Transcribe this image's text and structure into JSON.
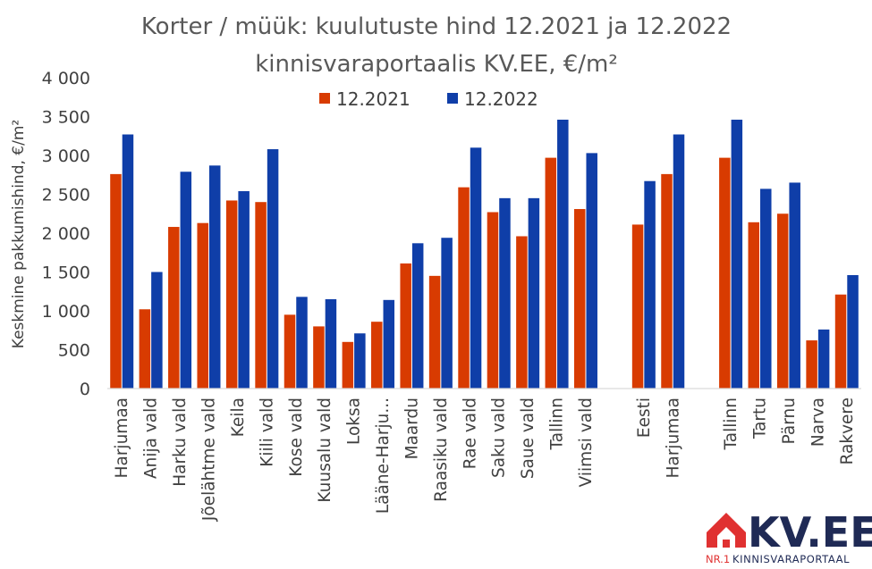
{
  "chart_data": {
    "type": "bar",
    "title": [
      "Korter / müük: kuulutuste hind 12.2021 ja 12.2022",
      "kinnisvaraportaalis KV.EE, €/m²"
    ],
    "ylabel": "Keskmine pakkumishind, €/m²",
    "xlabel": "",
    "ylim": [
      0,
      4000
    ],
    "yticks": [
      0,
      500,
      1000,
      1500,
      2000,
      2500,
      3000,
      3500,
      4000
    ],
    "ytick_labels": [
      "0",
      "500",
      "1 000",
      "1 500",
      "2 000",
      "2 500",
      "3 000",
      "3 500",
      "4 000"
    ],
    "grid": false,
    "legend_position": "top-center",
    "categories": [
      "Harjumaa",
      "Anija vald",
      "Harku vald",
      "Jõelähtme vald",
      "Keila",
      "Kiili vald",
      "Kose vald",
      "Kuusalu vald",
      "Loksa",
      "Lääne-Harju...",
      "Maardu",
      "Raasiku vald",
      "Rae vald",
      "Saku vald",
      "Saue vald",
      "Tallinn",
      "Viimsi vald",
      "",
      "Eesti",
      "Harjumaa",
      "",
      "Tallinn",
      "Tartu",
      "Pärnu",
      "Narva",
      "Rakvere"
    ],
    "series": [
      {
        "name": "12.2021",
        "color": "#d83b01",
        "values": [
          2760,
          1020,
          2080,
          2130,
          2420,
          2400,
          950,
          800,
          600,
          860,
          1610,
          1450,
          2590,
          2270,
          1960,
          2970,
          2310,
          null,
          2110,
          2760,
          null,
          2970,
          2140,
          2250,
          620,
          1210
        ]
      },
      {
        "name": "12.2022",
        "color": "#0f3ea8",
        "values": [
          3270,
          1500,
          2790,
          2870,
          2540,
          3080,
          1180,
          1150,
          710,
          1140,
          1870,
          1940,
          3100,
          2450,
          2450,
          3460,
          3030,
          null,
          2670,
          3270,
          null,
          3460,
          2570,
          2650,
          760,
          1460
        ]
      }
    ]
  },
  "logo": {
    "text": "KV.EE",
    "tagline_prefix": "NR.1",
    "tagline": "KINNISVARAPORTAAL",
    "colors": {
      "house": "#e03131",
      "text": "#1f2a55"
    }
  }
}
